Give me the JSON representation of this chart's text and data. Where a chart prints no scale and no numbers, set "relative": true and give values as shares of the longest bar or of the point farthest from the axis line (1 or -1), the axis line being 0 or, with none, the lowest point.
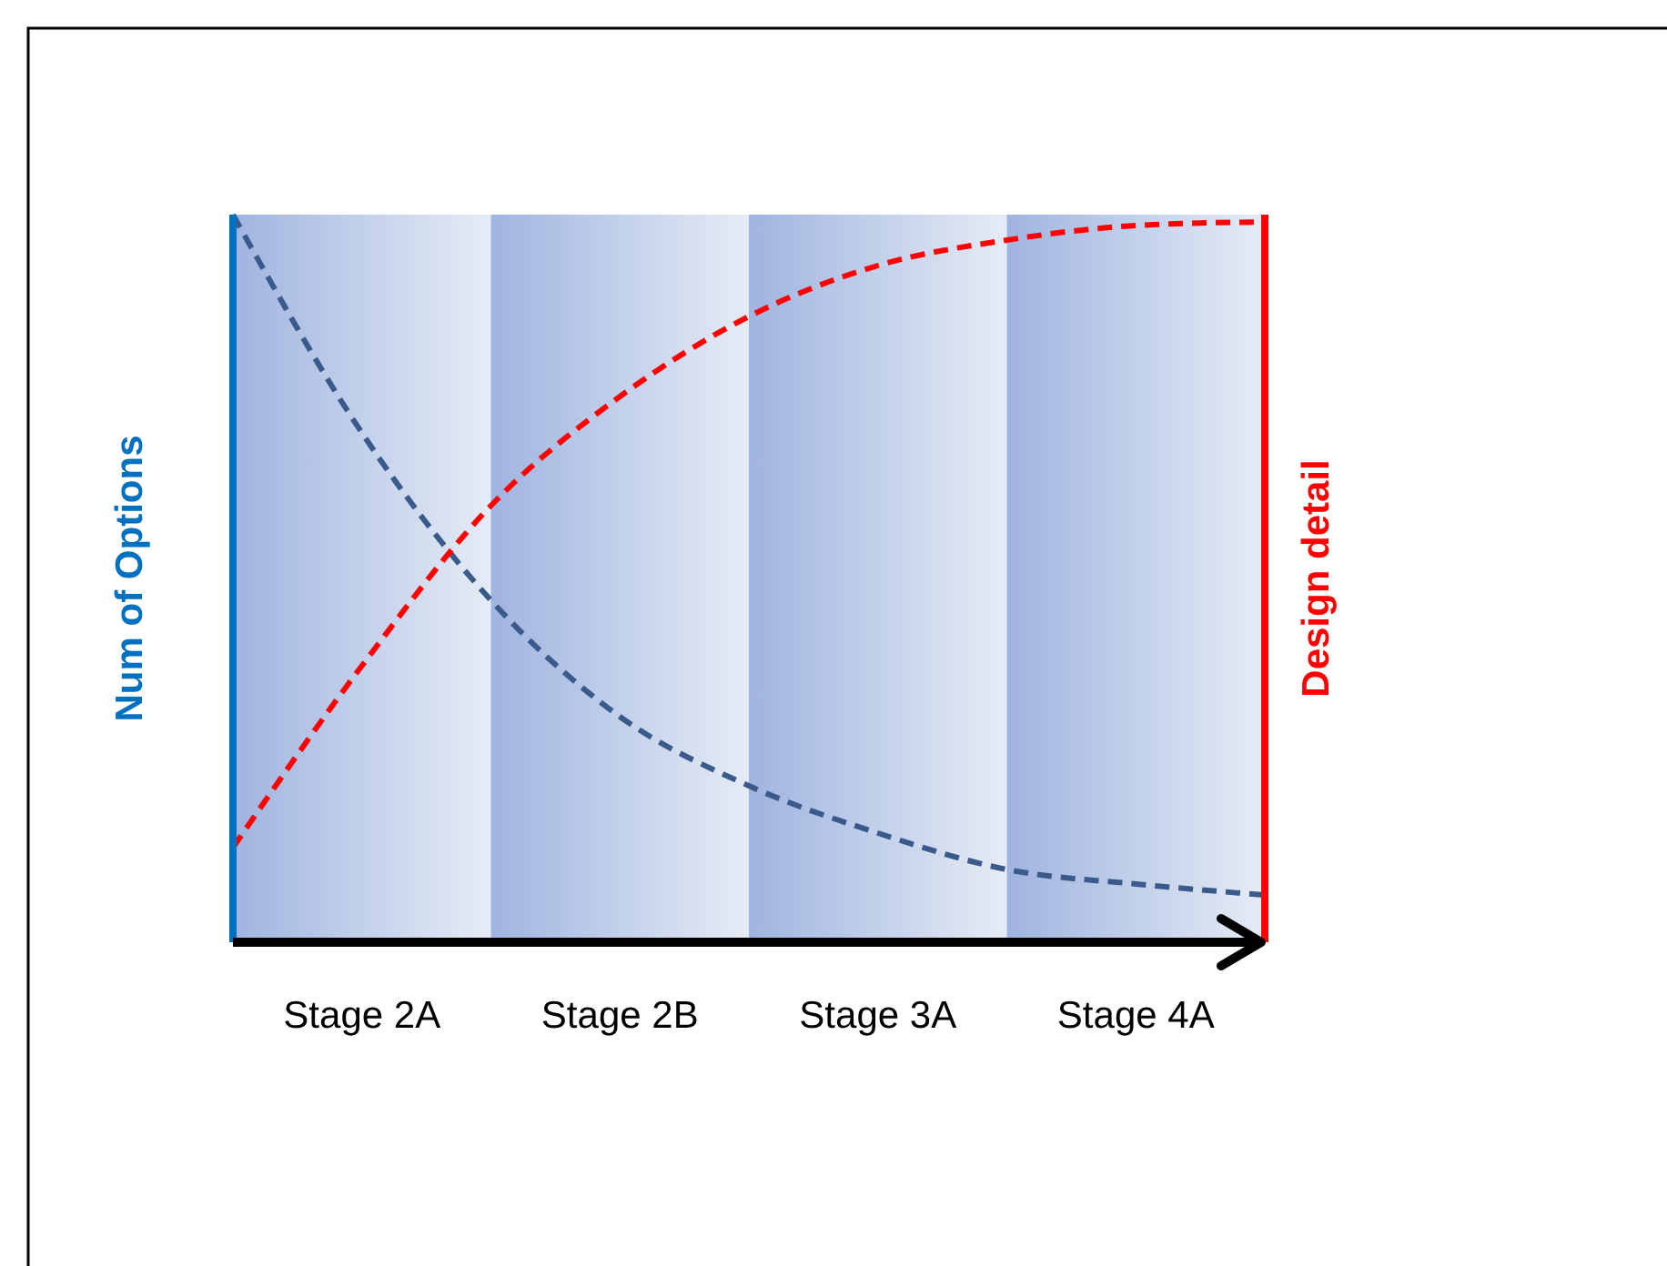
{
  "chart_data": {
    "type": "line",
    "ylabel": "Num of Options",
    "y2label": "Design detail",
    "relative": true,
    "categories": [
      null,
      "Stage 2A",
      null,
      "Stage 2B",
      null,
      "Stage 3A",
      null,
      "Stage 4A",
      null
    ],
    "tick_labels": "x",
    "marker": "none",
    "line_style": "dashed",
    "series": [
      {
        "color": "#3a5a8c",
        "values": [
          1.0,
          0.7,
          0.47,
          0.31,
          0.215,
          0.15,
          0.1,
          0.08,
          0.065
        ]
      },
      {
        "color": "#ff0000",
        "axis": "y2",
        "values": [
          0.13,
          0.38,
          0.6,
          0.75,
          0.86,
          0.93,
          0.965,
          0.985,
          0.99
        ]
      }
    ]
  }
}
